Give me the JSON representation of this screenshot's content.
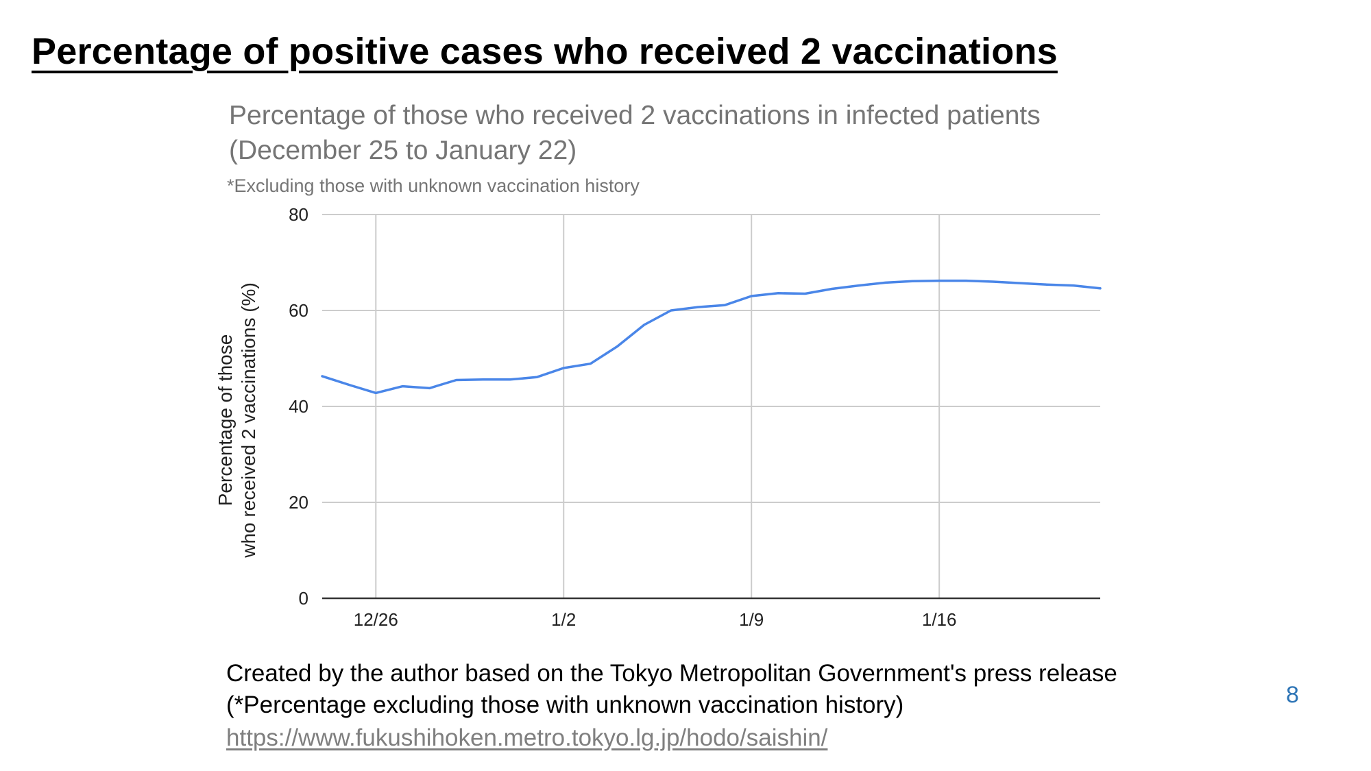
{
  "slide": {
    "title": "Percentage of positive cases who received 2 vaccinations",
    "caption_line1": "Created by the author based on the Tokyo Metropolitan Government's press release",
    "caption_line2": "(*Percentage excluding those with unknown vaccination history)",
    "source_url": "https://www.fukushihoken.metro.tokyo.lg.jp/hodo/saishin/",
    "page_number": "8"
  },
  "chart_data": {
    "type": "line",
    "title": "Percentage of those who received 2 vaccinations in infected patients (December 25 to January 22)",
    "subtitle": "*Excluding those with unknown vaccination history",
    "xlabel": "",
    "ylabel_line1": "Percentage of those",
    "ylabel_line2": "who received 2 vaccinations (%)",
    "x_tick_labels": [
      "12/26",
      "1/2",
      "1/9",
      "1/16"
    ],
    "x_tick_dates": [
      "12/26",
      "1/2",
      "1/9",
      "1/16"
    ],
    "y_ticks": [
      0,
      20,
      40,
      60,
      80
    ],
    "ylim": [
      0,
      80
    ],
    "xlim": [
      "12/24",
      "1/22"
    ],
    "grid": true,
    "line_color": "#4a86e8",
    "x": [
      "12/24",
      "12/25",
      "12/26",
      "12/27",
      "12/28",
      "12/29",
      "12/30",
      "12/31",
      "1/1",
      "1/2",
      "1/3",
      "1/4",
      "1/5",
      "1/6",
      "1/7",
      "1/8",
      "1/9",
      "1/10",
      "1/11",
      "1/12",
      "1/13",
      "1/14",
      "1/15",
      "1/16",
      "1/17",
      "1/18",
      "1/19",
      "1/20",
      "1/21",
      "1/22"
    ],
    "values": [
      46.3,
      44.5,
      42.8,
      44.2,
      43.8,
      45.5,
      45.6,
      45.6,
      46.1,
      48.0,
      48.9,
      52.5,
      57.0,
      60.0,
      60.7,
      61.1,
      63.0,
      63.6,
      63.5,
      64.5,
      65.2,
      65.8,
      66.1,
      66.2,
      66.2,
      66.0,
      65.7,
      65.4,
      65.2,
      64.6
    ]
  }
}
